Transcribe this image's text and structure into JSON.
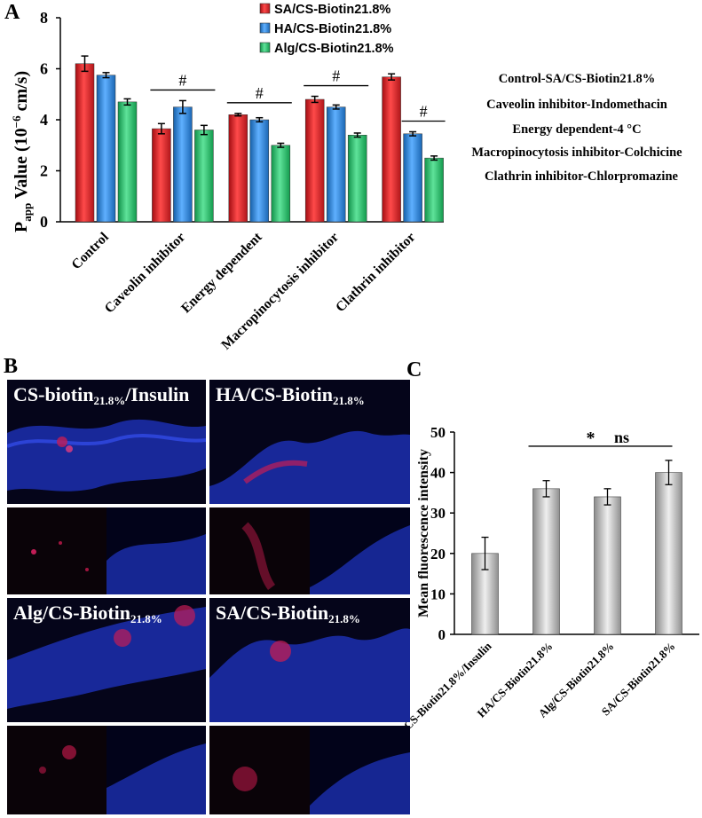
{
  "panels": {
    "a": "A",
    "b": "B",
    "c": "C"
  },
  "chart_data": [
    {
      "id": "A",
      "type": "bar",
      "ylabel_main": "P",
      "ylabel_sub": "app",
      "ylabel_rest": " Value (10",
      "ylabel_exp": "−6",
      "ylabel_unit": " cm/s)",
      "ylim": [
        0,
        8
      ],
      "yticks": [
        0,
        2,
        4,
        6,
        8
      ],
      "categories": [
        "Control",
        "Caveolin inhibitor",
        "Energy dependent",
        "Macropinocytosis inhibitor",
        "Clathrin inhibitor"
      ],
      "series": [
        {
          "name": "SA/CS-Biotin21.8%",
          "color": "#e8262a",
          "values": [
            6.2,
            3.65,
            4.2,
            4.8,
            5.68
          ],
          "errors": [
            0.3,
            0.2,
            0.05,
            0.12,
            0.12
          ]
        },
        {
          "name": "HA/CS-Biotin21.8%",
          "color": "#2c8ae0",
          "values": [
            5.75,
            4.5,
            4.0,
            4.5,
            3.45
          ],
          "errors": [
            0.1,
            0.25,
            0.08,
            0.08,
            0.08
          ]
        },
        {
          "name": "Alg/CS-Biotin21.8%",
          "color": "#27c46b",
          "values": [
            4.7,
            3.6,
            3.0,
            3.4,
            2.5
          ],
          "errors": [
            0.12,
            0.18,
            0.08,
            0.08,
            0.08
          ]
        }
      ],
      "annotations": [
        "#",
        "#",
        "#",
        "#"
      ],
      "legend_position": "top",
      "grid": false
    },
    {
      "id": "C",
      "type": "bar",
      "ylabel": "Mean fluorescence intensity",
      "ylim": [
        0,
        50
      ],
      "yticks": [
        0,
        10,
        20,
        30,
        40,
        50
      ],
      "categories": [
        "CS-Biotin21.8%/Insulin",
        "HA/CS-Biotin21.8%",
        "Alg/CS-Biotin21.8%",
        "SA/CS-Biotin21.8%"
      ],
      "values": [
        20,
        36,
        34,
        40
      ],
      "errors": [
        4,
        2,
        2,
        3
      ],
      "significance": {
        "star": "*",
        "ns": "ns"
      },
      "grid": false
    }
  ],
  "notes": [
    "Control-SA/CS-Biotin21.8%",
    "Caveolin inhibitor-Indomethacin",
    "Energy dependent-4 °C",
    "Macropinocytosis inhibitor-Colchicine",
    "Clathrin inhibitor-Chlorpromazine"
  ],
  "micrographs": [
    {
      "label": "CS-biotin",
      "sub": "21.8%",
      "suffix": "/Insulin"
    },
    {
      "label": "HA/CS-Biotin",
      "sub": "21.8%",
      "suffix": ""
    },
    {
      "label": "Alg/CS-Biotin",
      "sub": "21.8%",
      "suffix": ""
    },
    {
      "label": "SA/CS-Biotin",
      "sub": "21.8%",
      "suffix": ""
    }
  ]
}
